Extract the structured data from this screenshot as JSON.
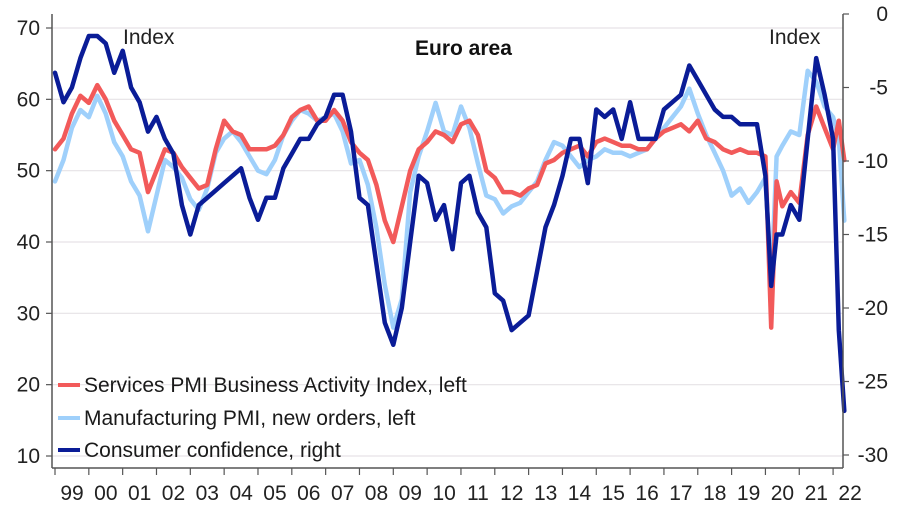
{
  "chart_data": {
    "type": "line",
    "title": "Euro area",
    "left_axis": {
      "label": "Index",
      "ylim": [
        10,
        70
      ],
      "ticks": [
        10,
        20,
        30,
        40,
        50,
        60,
        70
      ],
      "tick_labels": [
        "10",
        "20",
        "30",
        "40",
        "50",
        "60",
        "70"
      ]
    },
    "right_axis": {
      "label": "Index",
      "ylim": [
        -30,
        0
      ],
      "ticks": [
        0,
        -5,
        -10,
        -15,
        -20,
        -25,
        -30
      ],
      "tick_labels": [
        "0",
        "-5",
        "-10",
        "-15",
        "-20",
        "-25",
        "-30"
      ]
    },
    "x_axis": {
      "xlim": [
        1999,
        2022.4
      ],
      "ticks": [
        1999,
        2000,
        2001,
        2002,
        2003,
        2004,
        2005,
        2006,
        2007,
        2008,
        2009,
        2010,
        2011,
        2012,
        2013,
        2014,
        2015,
        2016,
        2017,
        2018,
        2019,
        2020,
        2021,
        2022
      ],
      "tick_labels": [
        "99",
        "00",
        "01",
        "02",
        "03",
        "04",
        "05",
        "06",
        "07",
        "08",
        "09",
        "10",
        "11",
        "12",
        "13",
        "14",
        "15",
        "16",
        "17",
        "18",
        "19",
        "20",
        "21",
        "22"
      ]
    },
    "grid": true,
    "legend": "bottom-left",
    "x": [
      1999.0,
      1999.25,
      1999.5,
      1999.75,
      2000.0,
      2000.25,
      2000.5,
      2000.75,
      2001.0,
      2001.25,
      2001.5,
      2001.75,
      2002.0,
      2002.25,
      2002.5,
      2002.75,
      2003.0,
      2003.25,
      2003.5,
      2003.75,
      2004.0,
      2004.25,
      2004.5,
      2004.75,
      2005.0,
      2005.25,
      2005.5,
      2005.75,
      2006.0,
      2006.25,
      2006.5,
      2006.75,
      2007.0,
      2007.25,
      2007.5,
      2007.75,
      2008.0,
      2008.25,
      2008.5,
      2008.75,
      2009.0,
      2009.25,
      2009.5,
      2009.75,
      2010.0,
      2010.25,
      2010.5,
      2010.75,
      2011.0,
      2011.25,
      2011.5,
      2011.75,
      2012.0,
      2012.25,
      2012.5,
      2012.75,
      2013.0,
      2013.25,
      2013.5,
      2013.75,
      2014.0,
      2014.25,
      2014.5,
      2014.75,
      2015.0,
      2015.25,
      2015.5,
      2015.75,
      2016.0,
      2016.25,
      2016.5,
      2016.75,
      2017.0,
      2017.25,
      2017.5,
      2017.75,
      2018.0,
      2018.25,
      2018.5,
      2018.75,
      2019.0,
      2019.25,
      2019.5,
      2019.75,
      2020.0,
      2020.17,
      2020.33,
      2020.5,
      2020.75,
      2021.0,
      2021.25,
      2021.5,
      2021.75,
      2022.0,
      2022.17,
      2022.33
    ],
    "series": [
      {
        "name": "Services PMI Business Activity Index, left",
        "axis": "left",
        "color": "#f25a5a",
        "values": [
          53,
          54.5,
          58,
          60.5,
          59.5,
          62,
          60,
          57,
          55,
          53,
          52.5,
          47,
          50,
          53,
          52.5,
          50.5,
          49,
          47.5,
          48,
          53,
          57,
          55.5,
          55,
          53,
          53,
          53,
          53.5,
          55,
          57.5,
          58.5,
          59,
          57,
          57,
          58.5,
          57,
          54,
          52.5,
          51.5,
          48,
          43,
          40,
          45,
          50,
          53,
          54,
          55.5,
          55,
          54,
          56.5,
          57,
          55,
          50,
          49,
          47,
          47,
          46.5,
          47.5,
          48,
          51,
          51.5,
          52.5,
          53,
          53.5,
          52,
          54,
          54.5,
          54,
          53.5,
          53.5,
          53,
          53,
          54.5,
          55.5,
          56,
          56.5,
          55.5,
          57,
          54.5,
          54,
          53,
          52.5,
          53,
          52.5,
          52.5,
          52,
          28,
          48.5,
          45,
          47,
          45.5,
          55,
          59,
          56,
          53,
          57,
          51.5
        ]
      },
      {
        "name": "Manufacturing PMI, new orders, left",
        "axis": "left",
        "color": "#9fd0fb",
        "values": [
          48.5,
          51.5,
          56,
          58.5,
          57.5,
          60.5,
          58,
          54,
          52,
          48.5,
          46.5,
          41.5,
          46.5,
          51.5,
          50.5,
          49,
          46,
          44.5,
          47.5,
          52.5,
          54.5,
          55.5,
          54,
          52,
          50,
          49.5,
          51.5,
          55,
          57,
          58.5,
          58,
          57,
          57.5,
          58,
          55.5,
          51,
          51.5,
          48,
          42,
          34,
          28,
          32,
          47,
          52,
          55.5,
          59.5,
          55.5,
          55,
          59,
          56,
          51,
          46.5,
          46,
          44,
          45,
          45.5,
          47,
          48.5,
          51.5,
          54,
          53.5,
          52,
          50.5,
          51.5,
          52,
          53,
          52.5,
          52.5,
          52,
          52.5,
          53,
          54.5,
          56,
          57.5,
          59,
          61.5,
          58,
          55,
          52.5,
          50,
          46.5,
          47.5,
          45.5,
          47,
          49,
          34,
          52,
          53.5,
          55.5,
          55,
          64,
          62.5,
          59,
          57.5,
          54.5,
          43
        ]
      },
      {
        "name": "Consumer confidence, right",
        "axis": "right",
        "color": "#0a1c97",
        "values": [
          -4,
          -6,
          -5,
          -3,
          -1.5,
          -1.5,
          -2,
          -4,
          -2.5,
          -5,
          -6,
          -8,
          -7,
          -8.5,
          -9.5,
          -13,
          -15,
          -13,
          -12.5,
          -12,
          -11.5,
          -11,
          -10.5,
          -12.5,
          -14,
          -12.5,
          -12.5,
          -10.5,
          -9.5,
          -8.5,
          -8.5,
          -7.5,
          -7,
          -5.5,
          -5.5,
          -8,
          -12.5,
          -13,
          -17,
          -21,
          -22.5,
          -20,
          -15.5,
          -11,
          -11.5,
          -14,
          -13,
          -16,
          -11.5,
          -11,
          -13.5,
          -14.5,
          -19,
          -19.5,
          -21.5,
          -21,
          -20.5,
          -17.5,
          -14.5,
          -13,
          -11,
          -8.5,
          -8.5,
          -11.5,
          -6.5,
          -7,
          -6.5,
          -8.5,
          -6,
          -8.5,
          -8.5,
          -8.5,
          -6.5,
          -6,
          -5.5,
          -3.5,
          -4.5,
          -5.5,
          -6.5,
          -7,
          -7,
          -7.5,
          -7.5,
          -7.5,
          -11,
          -18.5,
          -15,
          -15,
          -13,
          -14,
          -8.5,
          -3,
          -5.5,
          -8.5,
          -21.5,
          -27
        ]
      }
    ]
  },
  "legend_items": [
    {
      "label": "Services PMI Business Activity Index, left",
      "color": "#f25a5a"
    },
    {
      "label": "Manufacturing PMI, new orders, left",
      "color": "#9fd0fb"
    },
    {
      "label": "Consumer confidence, right",
      "color": "#0a1c97"
    }
  ]
}
